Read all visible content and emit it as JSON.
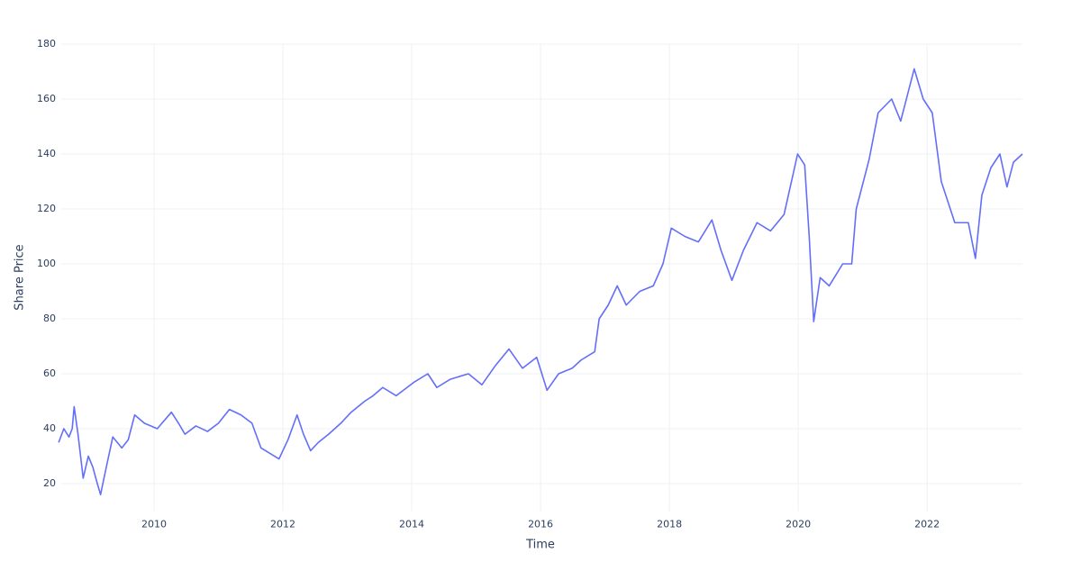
{
  "chart_data": {
    "type": "line",
    "xlabel": "Time",
    "ylabel": "Share Price",
    "x": [
      2008.52,
      2008.6,
      2008.68,
      2008.73,
      2008.76,
      2008.82,
      2008.9,
      2008.98,
      2009.05,
      2009.12,
      2009.17,
      2009.25,
      2009.36,
      2009.5,
      2009.6,
      2009.7,
      2009.85,
      2010.05,
      2010.27,
      2010.38,
      2010.48,
      2010.65,
      2010.83,
      2011.0,
      2011.17,
      2011.35,
      2011.52,
      2011.66,
      2011.8,
      2011.94,
      2012.08,
      2012.22,
      2012.32,
      2012.43,
      2012.55,
      2012.71,
      2012.9,
      2013.06,
      2013.27,
      2013.4,
      2013.55,
      2013.76,
      2014.04,
      2014.25,
      2014.39,
      2014.6,
      2014.88,
      2015.09,
      2015.3,
      2015.51,
      2015.72,
      2015.94,
      2016.1,
      2016.28,
      2016.49,
      2016.63,
      2016.84,
      2016.91,
      2017.05,
      2017.19,
      2017.33,
      2017.54,
      2017.75,
      2017.9,
      2018.03,
      2018.24,
      2018.45,
      2018.66,
      2018.8,
      2018.97,
      2019.15,
      2019.36,
      2019.57,
      2019.78,
      2019.99,
      2020.1,
      2020.17,
      2020.24,
      2020.34,
      2020.48,
      2020.69,
      2020.83,
      2020.9,
      2021.1,
      2021.24,
      2021.45,
      2021.59,
      2021.8,
      2021.94,
      2022.08,
      2022.22,
      2022.43,
      2022.64,
      2022.75,
      2022.85,
      2022.99,
      2023.13,
      2023.24,
      2023.34,
      2023.48
    ],
    "series": [
      {
        "name": "Share Price",
        "color": "#636efa",
        "values": [
          35,
          40,
          37,
          40,
          48,
          38,
          22,
          30,
          26,
          20,
          16,
          25,
          37,
          33,
          36,
          45,
          42,
          40,
          46,
          42,
          38,
          41,
          39,
          42,
          47,
          45,
          42,
          33,
          31,
          29,
          36,
          45,
          38,
          32,
          35,
          38,
          42,
          46,
          50,
          52,
          55,
          52,
          57,
          60,
          55,
          58,
          60,
          56,
          63,
          69,
          62,
          66,
          54,
          60,
          62,
          65,
          68,
          80,
          85,
          92,
          85,
          90,
          92,
          100,
          113,
          110,
          108,
          116,
          105,
          94,
          105,
          115,
          112,
          118,
          140,
          136,
          110,
          79,
          95,
          92,
          100,
          100,
          120,
          138,
          155,
          160,
          152,
          171,
          160,
          155,
          130,
          115,
          115,
          102,
          125,
          135,
          140,
          128,
          137,
          140
        ]
      }
    ],
    "xlim": [
      2008.56,
      2023.48
    ],
    "xticks": [
      2010,
      2012,
      2014,
      2016,
      2018,
      2020,
      2022
    ],
    "ylim": [
      10,
      180
    ],
    "yticks": [
      20,
      40,
      60,
      80,
      100,
      120,
      140,
      160,
      180
    ],
    "grid": true
  }
}
